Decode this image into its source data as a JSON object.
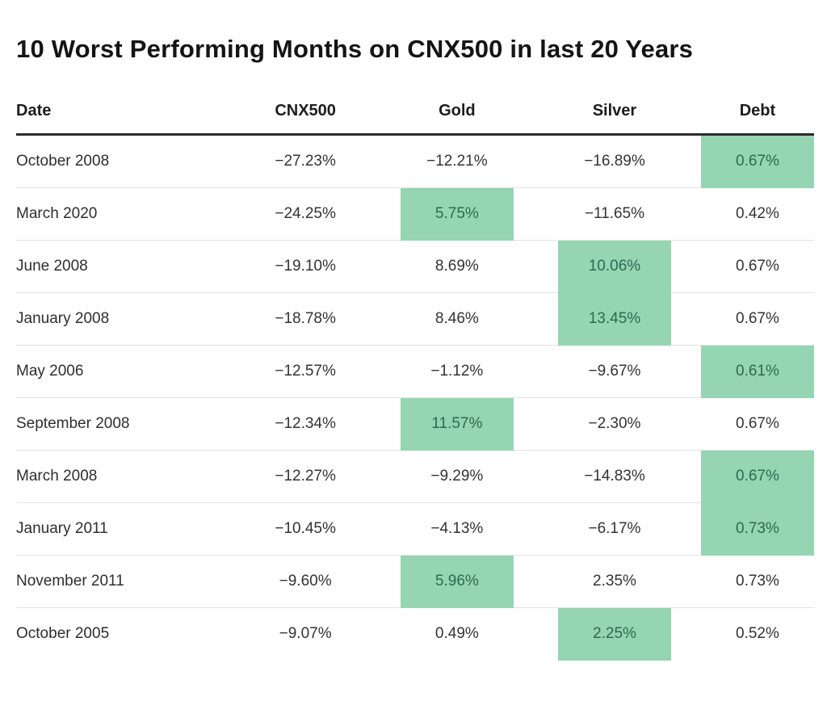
{
  "chart_data": {
    "type": "table",
    "title": "10 Worst Performing Months on CNX500 in last 20 Years",
    "columns": [
      "Date",
      "CNX500",
      "Gold",
      "Silver",
      "Debt"
    ],
    "rows": [
      {
        "date": "October 2008",
        "cnx500": "−27.23%",
        "gold": "−12.21%",
        "silver": "−16.89%",
        "debt": "0.67%",
        "highlight": "debt"
      },
      {
        "date": "March 2020",
        "cnx500": "−24.25%",
        "gold": "5.75%",
        "silver": "−11.65%",
        "debt": "0.42%",
        "highlight": "gold"
      },
      {
        "date": "June 2008",
        "cnx500": "−19.10%",
        "gold": "8.69%",
        "silver": "10.06%",
        "debt": "0.67%",
        "highlight": "silver"
      },
      {
        "date": "January 2008",
        "cnx500": "−18.78%",
        "gold": "8.46%",
        "silver": "13.45%",
        "debt": "0.67%",
        "highlight": "silver"
      },
      {
        "date": "May 2006",
        "cnx500": "−12.57%",
        "gold": "−1.12%",
        "silver": "−9.67%",
        "debt": "0.61%",
        "highlight": "debt"
      },
      {
        "date": "September 2008",
        "cnx500": "−12.34%",
        "gold": "11.57%",
        "silver": "−2.30%",
        "debt": "0.67%",
        "highlight": "gold"
      },
      {
        "date": "March 2008",
        "cnx500": "−12.27%",
        "gold": "−9.29%",
        "silver": "−14.83%",
        "debt": "0.67%",
        "highlight": "debt"
      },
      {
        "date": "January 2011",
        "cnx500": "−10.45%",
        "gold": "−4.13%",
        "silver": "−6.17%",
        "debt": "0.73%",
        "highlight": "debt"
      },
      {
        "date": "November 2011",
        "cnx500": "−9.60%",
        "gold": "5.96%",
        "silver": "2.35%",
        "debt": "0.73%",
        "highlight": "gold"
      },
      {
        "date": "October 2005",
        "cnx500": "−9.07%",
        "gold": "0.49%",
        "silver": "2.25%",
        "debt": "0.52%",
        "highlight": "silver"
      }
    ]
  },
  "colors": {
    "highlight_bg": "#95d5b2",
    "highlight_text": "#2d6a4f",
    "header_rule": "#2d2d2d",
    "row_rule": "#e3e3e3"
  }
}
